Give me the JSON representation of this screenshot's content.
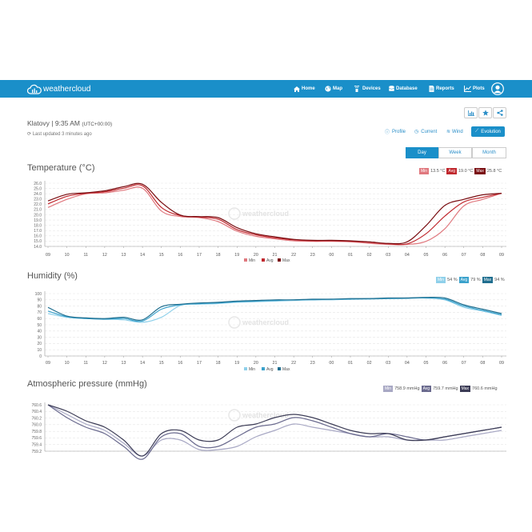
{
  "brand": {
    "name": "weathercloud"
  },
  "nav": {
    "items": [
      {
        "label": "Home",
        "icon": "home-icon"
      },
      {
        "label": "Map",
        "icon": "globe-icon"
      },
      {
        "label": "Devices",
        "icon": "devices-icon"
      },
      {
        "label": "Database",
        "icon": "database-icon"
      },
      {
        "label": "Reports",
        "icon": "report-icon"
      },
      {
        "label": "Plots",
        "icon": "plots-icon"
      }
    ]
  },
  "station": {
    "name": "Klatovy",
    "time": "9:35 AM",
    "tz": "(UTC+00:00)",
    "updated": "Last updated 3 minutes ago"
  },
  "tabs": [
    "Profile",
    "Current",
    "Wind",
    "Evolution"
  ],
  "periods": [
    "Day",
    "Week",
    "Month"
  ],
  "colors": {
    "nav": "#1a8fc9",
    "temp_min": "#e0787e",
    "temp_avg": "#c0282e",
    "temp_max": "#7a0e12",
    "hum_min": "#8fd0ea",
    "hum_avg": "#3ba2cc",
    "hum_max": "#1f6e8f",
    "pres_min": "#a8a8c4",
    "pres_avg": "#6a6a8e",
    "pres_max": "#3b3b55"
  },
  "sections": {
    "temperature": {
      "title": "Temperature (°C)",
      "min": "13.5 °C",
      "avg": "19.0 °C",
      "max": "25.8 °C"
    },
    "humidity": {
      "title": "Humidity (%)",
      "min": "54 %",
      "avg": "79 %",
      "max": "94 %"
    },
    "pressure": {
      "title": "Atmospheric pressure (mmHg)",
      "min": "758.9 mmHg",
      "avg": "759.7 mmHg",
      "max": "760.6 mmHg"
    }
  },
  "legend_labels": {
    "min": "Min",
    "avg": "Avg",
    "max": "Max"
  },
  "watermark": "weathercloud",
  "chart_data": [
    {
      "type": "line",
      "name": "temperature",
      "x": [
        "09",
        "10",
        "11",
        "12",
        "13",
        "14",
        "15",
        "16",
        "17",
        "18",
        "19",
        "20",
        "21",
        "22",
        "23",
        "00",
        "01",
        "02",
        "03",
        "04",
        "05",
        "06",
        "07",
        "08",
        "09"
      ],
      "yticks": [
        "26.0",
        "25.0",
        "24.0",
        "23.0",
        "22.0",
        "21.0",
        "20.0",
        "19.0",
        "18.0",
        "17.0",
        "16.0",
        "15.0",
        "14.0"
      ],
      "ylim": [
        13.5,
        26.0
      ],
      "series": [
        {
          "name": "Min",
          "values": [
            21.2,
            22.8,
            23.9,
            24.1,
            24.6,
            25.0,
            20.5,
            19.4,
            19.2,
            18.4,
            16.5,
            15.5,
            15.0,
            14.6,
            14.5,
            14.5,
            14.4,
            14.1,
            13.9,
            13.9,
            14.5,
            17.0,
            21.5,
            22.8,
            24.0
          ]
        },
        {
          "name": "Avg",
          "values": [
            21.9,
            23.4,
            24.0,
            24.3,
            25.0,
            25.5,
            21.2,
            19.6,
            19.3,
            18.9,
            16.8,
            15.8,
            15.2,
            14.8,
            14.6,
            14.6,
            14.5,
            14.3,
            14.0,
            14.0,
            16.0,
            19.5,
            22.3,
            23.2,
            24.0
          ]
        },
        {
          "name": "Max",
          "values": [
            22.5,
            23.8,
            24.1,
            24.5,
            25.3,
            25.8,
            22.2,
            19.7,
            19.4,
            19.2,
            17.2,
            16.0,
            15.4,
            14.9,
            14.7,
            14.7,
            14.6,
            14.4,
            14.1,
            14.4,
            17.6,
            21.6,
            22.8,
            23.7,
            24.0
          ]
        }
      ]
    },
    {
      "type": "line",
      "name": "humidity",
      "x": [
        "09",
        "10",
        "11",
        "12",
        "13",
        "14",
        "15",
        "16",
        "17",
        "18",
        "19",
        "20",
        "21",
        "22",
        "23",
        "00",
        "01",
        "02",
        "03",
        "04",
        "05",
        "06",
        "07",
        "08",
        "09"
      ],
      "yticks": [
        "100",
        "90",
        "80",
        "70",
        "60",
        "50",
        "40",
        "30",
        "20",
        "10",
        "0"
      ],
      "ylim": [
        0,
        100
      ],
      "series": [
        {
          "name": "Min",
          "values": [
            68,
            62,
            60,
            59,
            58,
            54,
            62,
            81,
            83,
            84,
            86,
            87,
            88,
            89,
            90,
            90,
            91,
            91,
            92,
            92,
            93,
            90,
            78,
            72,
            65
          ]
        },
        {
          "name": "Avg",
          "values": [
            72,
            63,
            60,
            59,
            60,
            56,
            75,
            82,
            84,
            85,
            87,
            88,
            89,
            90,
            90,
            91,
            91,
            92,
            92,
            93,
            93,
            91,
            80,
            73,
            66
          ]
        },
        {
          "name": "Max",
          "values": [
            78,
            64,
            61,
            60,
            62,
            58,
            79,
            83,
            85,
            86,
            88,
            89,
            90,
            90,
            91,
            91,
            92,
            92,
            93,
            93,
            94,
            93,
            82,
            75,
            68
          ]
        }
      ]
    },
    {
      "type": "line",
      "name": "pressure",
      "x": [
        "09",
        "10",
        "11",
        "12",
        "13",
        "14",
        "15",
        "16",
        "17",
        "18",
        "19",
        "20",
        "21",
        "22",
        "23",
        "00",
        "01",
        "02",
        "03",
        "04",
        "05",
        "06",
        "07",
        "08",
        "09"
      ],
      "yticks": [
        "760.6",
        "760.4",
        "760.2",
        "760.0",
        "759.8",
        "759.6",
        "759.4",
        "759.2"
      ],
      "ylim": [
        759.15,
        760.6
      ],
      "series": [
        {
          "name": "Min",
          "values": [
            760.6,
            760.3,
            760.0,
            759.8,
            759.4,
            759.0,
            759.5,
            759.5,
            759.2,
            759.2,
            759.3,
            759.6,
            759.8,
            760.0,
            759.9,
            759.8,
            759.7,
            759.6,
            759.6,
            759.5,
            759.5,
            759.5,
            759.6,
            759.7,
            759.8
          ]
        },
        {
          "name": "Avg",
          "values": [
            760.6,
            760.2,
            759.9,
            759.7,
            759.3,
            758.9,
            759.6,
            759.7,
            759.3,
            759.3,
            759.6,
            759.9,
            760.0,
            760.2,
            760.1,
            759.9,
            759.7,
            759.6,
            759.7,
            759.6,
            759.5,
            759.6,
            759.7,
            759.8,
            759.9
          ]
        },
        {
          "name": "Max",
          "values": [
            760.6,
            760.4,
            760.1,
            759.9,
            759.5,
            759.0,
            759.7,
            759.8,
            759.5,
            759.5,
            759.9,
            760.0,
            760.2,
            760.3,
            760.2,
            760.0,
            759.8,
            759.7,
            759.7,
            759.5,
            759.5,
            759.6,
            759.7,
            759.8,
            759.9
          ]
        }
      ]
    }
  ]
}
